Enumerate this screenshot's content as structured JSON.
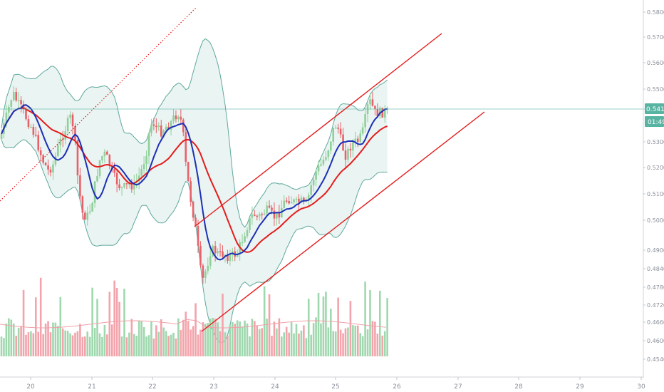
{
  "chart_data": {
    "type": "candlestick",
    "price_axis": {
      "ticks": [
        "0.5800",
        "0.5700",
        "0.5600",
        "0.5500",
        "0.5400",
        "0.5300",
        "0.5200",
        "0.5100",
        "0.5000",
        "0.4900",
        "0.4840",
        "0.4780",
        "0.4720",
        "0.4660",
        "0.4600",
        "0.4540"
      ],
      "ylim": [
        0.4525,
        0.583
      ]
    },
    "time_axis": {
      "ticks": [
        "20",
        "21",
        "22",
        "23",
        "24",
        "25",
        "26",
        "27",
        "28",
        "29",
        "30"
      ]
    },
    "current_price": {
      "value": "0.5417",
      "countdown": "01:49"
    },
    "colors": {
      "up": "#8fcf9a",
      "down": "#e8616a",
      "ma_fast": "#1d2fb5",
      "ma_slow": "#e51c1c",
      "band": "#5fa99c",
      "band_fill": "#eaf4f2",
      "channel": "#e51c1c",
      "price_line": "#54b4a3",
      "vol_up": "#9fd8ae",
      "vol_down": "#f3a3ab"
    },
    "channel_lines": [
      {
        "style": "solid",
        "from": [
          "day 22.7",
          0.4997
        ],
        "to": [
          "day 25.65",
          0.573
        ]
      },
      {
        "style": "solid",
        "from": [
          "day 22.7",
          0.465
        ],
        "to": [
          "day 27.4",
          0.568
        ]
      },
      {
        "style": "dotted",
        "from": [
          "day 19.5",
          0.509
        ],
        "to": [
          "day 21.7",
          0.582
        ]
      }
    ],
    "grid": false
  }
}
